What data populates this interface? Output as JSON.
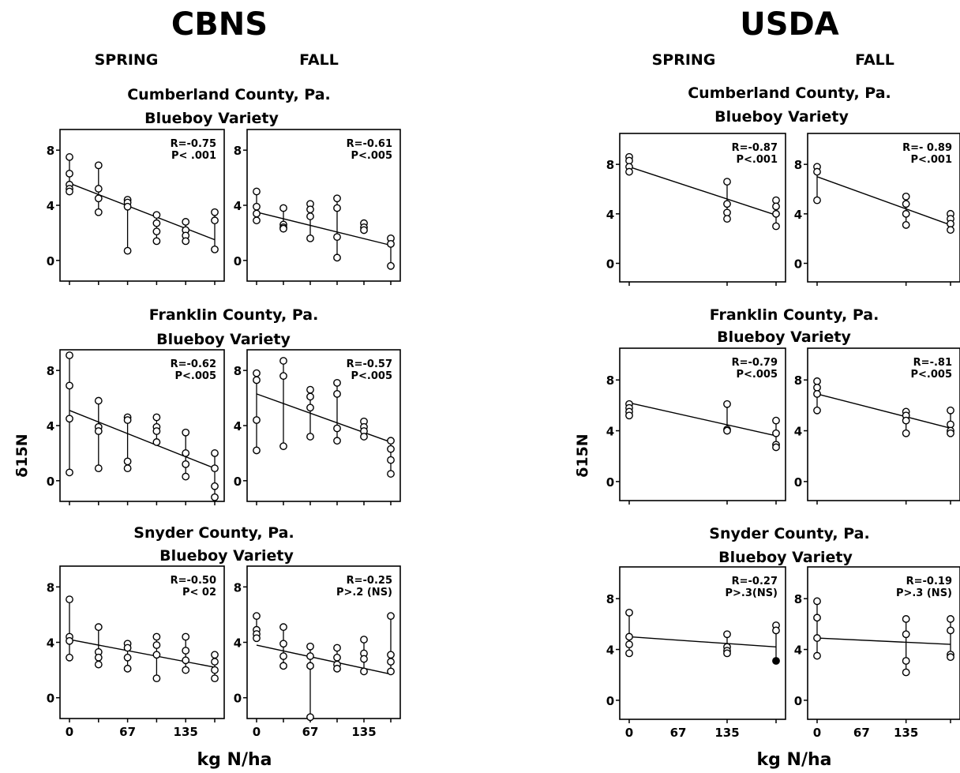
{
  "panels": [
    {
      "title": "CBNS",
      "season_labels": [
        "SPRING",
        "FALL"
      ],
      "ylabel": "δ15N",
      "xlabel": "kg N/ha",
      "groups": [
        {
          "county": "Cumberland County, Pa.",
          "variety": "Blueboy Variety"
        },
        {
          "county": "Franklin County, Pa.",
          "variety": "Blueboy Variety"
        },
        {
          "county": "Snyder County, Pa.",
          "variety": "Blueboy Variety"
        }
      ]
    },
    {
      "title": "USDA",
      "season_labels": [
        "SPRING",
        "FALL"
      ],
      "ylabel": "δ15N",
      "xlabel": "kg N/ha",
      "groups": [
        {
          "county": "Cumberland County, Pa.",
          "variety": "Blueboy Variety"
        },
        {
          "county": "Franklin County, Pa.",
          "variety": "Blueboy Variety"
        },
        {
          "county": "Snyder County, Pa.",
          "variety": "Blueboy Variety"
        }
      ]
    }
  ],
  "chart_data": [
    {
      "type": "scatter",
      "panel": "CBNS",
      "county": "Cumberland County, Pa.",
      "season": "SPRING",
      "r_text": "R=-0.75",
      "p_text": "P< .001",
      "x_ticks": [
        "0",
        "67",
        "135"
      ],
      "x_levels": [
        0,
        28,
        56,
        84,
        112,
        140
      ],
      "y_ticks": [
        "0",
        "4",
        "8"
      ],
      "ylim": [
        -1.5,
        9.5
      ],
      "points": [
        [
          0,
          7.5
        ],
        [
          0,
          6.3
        ],
        [
          0,
          5.5
        ],
        [
          0,
          5.2
        ],
        [
          0,
          5
        ],
        [
          28,
          6.9
        ],
        [
          28,
          5.2
        ],
        [
          28,
          4.5
        ],
        [
          28,
          3.5
        ],
        [
          56,
          4.4
        ],
        [
          56,
          4.2
        ],
        [
          56,
          3.9
        ],
        [
          56,
          0.7
        ],
        [
          84,
          3.3
        ],
        [
          84,
          2.7
        ],
        [
          84,
          2.1
        ],
        [
          84,
          1.4
        ],
        [
          112,
          2.8
        ],
        [
          112,
          2.2
        ],
        [
          112,
          1.8
        ],
        [
          112,
          1.4
        ],
        [
          140,
          3.5
        ],
        [
          140,
          2.9
        ],
        [
          140,
          0.8
        ]
      ],
      "fit": [
        [
          0,
          5.6
        ],
        [
          140,
          1.5
        ]
      ]
    },
    {
      "type": "scatter",
      "panel": "CBNS",
      "county": "Cumberland County, Pa.",
      "season": "FALL",
      "r_text": "R=-0.61",
      "p_text": "P<.005",
      "x_ticks": [
        "0",
        "67",
        "135"
      ],
      "x_levels": [
        0,
        28,
        56,
        84,
        112,
        140
      ],
      "y_ticks": [
        "0",
        "4",
        "8"
      ],
      "ylim": [
        -1.5,
        9.5
      ],
      "points": [
        [
          0,
          5
        ],
        [
          0,
          3.9
        ],
        [
          0,
          3.4
        ],
        [
          0,
          2.9
        ],
        [
          28,
          3.8
        ],
        [
          28,
          2.6
        ],
        [
          28,
          2.4
        ],
        [
          28,
          2.3
        ],
        [
          56,
          4.1
        ],
        [
          56,
          3.7
        ],
        [
          56,
          3.2
        ],
        [
          56,
          1.6
        ],
        [
          84,
          4.5
        ],
        [
          84,
          3.8
        ],
        [
          84,
          1.7
        ],
        [
          84,
          0.2
        ],
        [
          112,
          2.7
        ],
        [
          112,
          2.4
        ],
        [
          112,
          2.2
        ],
        [
          140,
          1.6
        ],
        [
          140,
          1.2
        ],
        [
          140,
          -0.4
        ]
      ],
      "fit": [
        [
          0,
          3.5
        ],
        [
          140,
          1.1
        ]
      ]
    },
    {
      "type": "scatter",
      "panel": "CBNS",
      "county": "Franklin County, Pa.",
      "season": "SPRING",
      "r_text": "R=-0.62",
      "p_text": "P<.005",
      "x_ticks": [
        "0",
        "67",
        "135"
      ],
      "x_levels": [
        0,
        28,
        56,
        84,
        112,
        140
      ],
      "y_ticks": [
        "0",
        "4",
        "8"
      ],
      "ylim": [
        -1.5,
        9.5
      ],
      "points": [
        [
          0,
          9.1
        ],
        [
          0,
          6.9
        ],
        [
          0,
          4.5
        ],
        [
          0,
          0.6
        ],
        [
          28,
          5.8
        ],
        [
          28,
          3.9
        ],
        [
          28,
          3.6
        ],
        [
          28,
          0.9
        ],
        [
          56,
          4.6
        ],
        [
          56,
          4.4
        ],
        [
          56,
          1.4
        ],
        [
          56,
          0.9
        ],
        [
          84,
          4.6
        ],
        [
          84,
          3.9
        ],
        [
          84,
          3.6
        ],
        [
          84,
          2.8
        ],
        [
          112,
          3.5
        ],
        [
          112,
          2
        ],
        [
          112,
          1.2
        ],
        [
          112,
          0.3
        ],
        [
          140,
          2
        ],
        [
          140,
          0.9
        ],
        [
          140,
          -0.4
        ],
        [
          140,
          -1.2
        ]
      ],
      "fit": [
        [
          0,
          5.1
        ],
        [
          140,
          0.9
        ]
      ]
    },
    {
      "type": "scatter",
      "panel": "CBNS",
      "county": "Franklin County, Pa.",
      "season": "FALL",
      "r_text": "R=-0.57",
      "p_text": "P<.005",
      "x_ticks": [
        "0",
        "67",
        "135"
      ],
      "x_levels": [
        0,
        28,
        56,
        84,
        112,
        140
      ],
      "y_ticks": [
        "0",
        "4",
        "8"
      ],
      "ylim": [
        -1.5,
        9.5
      ],
      "points": [
        [
          0,
          7.8
        ],
        [
          0,
          7.3
        ],
        [
          0,
          4.4
        ],
        [
          0,
          2.2
        ],
        [
          28,
          8.7
        ],
        [
          28,
          7.6
        ],
        [
          28,
          2.5
        ],
        [
          56,
          6.6
        ],
        [
          56,
          6.1
        ],
        [
          56,
          5.3
        ],
        [
          56,
          3.2
        ],
        [
          84,
          7.1
        ],
        [
          84,
          6.3
        ],
        [
          84,
          3.8
        ],
        [
          84,
          2.9
        ],
        [
          112,
          4.3
        ],
        [
          112,
          3.9
        ],
        [
          112,
          3.6
        ],
        [
          112,
          3.2
        ],
        [
          140,
          2.9
        ],
        [
          140,
          2.3
        ],
        [
          140,
          1.5
        ],
        [
          140,
          0.5
        ]
      ],
      "fit": [
        [
          0,
          6.3
        ],
        [
          140,
          2.8
        ]
      ]
    },
    {
      "type": "scatter",
      "panel": "CBNS",
      "county": "Snyder County, Pa.",
      "season": "SPRING",
      "r_text": "R=-0.50",
      "p_text": "P< 02",
      "x_ticks": [
        "0",
        "67",
        "135"
      ],
      "x_levels": [
        0,
        28,
        56,
        84,
        112,
        140
      ],
      "y_ticks": [
        "0",
        "4",
        "8"
      ],
      "ylim": [
        -1.5,
        9.5
      ],
      "points": [
        [
          0,
          7.1
        ],
        [
          0,
          4.4
        ],
        [
          0,
          4.1
        ],
        [
          0,
          2.9
        ],
        [
          28,
          5.1
        ],
        [
          28,
          3.3
        ],
        [
          28,
          2.9
        ],
        [
          28,
          2.4
        ],
        [
          56,
          3.9
        ],
        [
          56,
          3.6
        ],
        [
          56,
          2.9
        ],
        [
          56,
          2.1
        ],
        [
          84,
          4.4
        ],
        [
          84,
          3.8
        ],
        [
          84,
          3.1
        ],
        [
          84,
          1.4
        ],
        [
          112,
          4.4
        ],
        [
          112,
          3.4
        ],
        [
          112,
          2.7
        ],
        [
          112,
          2
        ],
        [
          140,
          3.1
        ],
        [
          140,
          2.6
        ],
        [
          140,
          2
        ],
        [
          140,
          1.4
        ]
      ],
      "fit": [
        [
          0,
          4.2
        ],
        [
          140,
          2.2
        ]
      ]
    },
    {
      "type": "scatter",
      "panel": "CBNS",
      "county": "Snyder County, Pa.",
      "season": "FALL",
      "r_text": "R=-0.25",
      "p_text": "P>.2 (NS)",
      "x_ticks": [
        "0",
        "67",
        "135"
      ],
      "x_levels": [
        0,
        28,
        56,
        84,
        112,
        140
      ],
      "y_ticks": [
        "0",
        "4",
        "8"
      ],
      "ylim": [
        -1.5,
        9.5
      ],
      "points": [
        [
          0,
          5.9
        ],
        [
          0,
          4.9
        ],
        [
          0,
          4.6
        ],
        [
          0,
          4.3
        ],
        [
          28,
          5.1
        ],
        [
          28,
          3.9
        ],
        [
          28,
          3
        ],
        [
          28,
          2.3
        ],
        [
          56,
          3.7
        ],
        [
          56,
          3
        ],
        [
          56,
          2.3
        ],
        [
          56,
          -1.4
        ],
        [
          84,
          3.6
        ],
        [
          84,
          2.9
        ],
        [
          84,
          2.4
        ],
        [
          84,
          2.1
        ],
        [
          112,
          4.2
        ],
        [
          112,
          3.2
        ],
        [
          112,
          2.8
        ],
        [
          112,
          1.9
        ],
        [
          140,
          5.9
        ],
        [
          140,
          3.1
        ],
        [
          140,
          2.6
        ],
        [
          140,
          1.9
        ]
      ],
      "fit": [
        [
          0,
          3.8
        ],
        [
          140,
          1.7
        ]
      ]
    },
    {
      "type": "scatter",
      "panel": "USDA",
      "county": "Cumberland County, Pa.",
      "season": "SPRING",
      "r_text": "R=-0.87",
      "p_text": "P<.001",
      "x_ticks": [
        "0",
        "67",
        "135"
      ],
      "x_levels": [
        0,
        100,
        150
      ],
      "y_ticks": [
        "0",
        "4",
        "8"
      ],
      "ylim": [
        -1.5,
        10.5
      ],
      "points": [
        [
          0,
          8.6
        ],
        [
          0,
          8.3
        ],
        [
          0,
          7.8
        ],
        [
          0,
          7.4
        ],
        [
          100,
          6.6
        ],
        [
          100,
          4.8
        ],
        [
          100,
          4.1
        ],
        [
          100,
          3.6
        ],
        [
          150,
          5.1
        ],
        [
          150,
          4.6
        ],
        [
          150,
          4
        ],
        [
          150,
          3
        ]
      ],
      "fit": [
        [
          0,
          7.8
        ],
        [
          150,
          3.9
        ]
      ]
    },
    {
      "type": "scatter",
      "panel": "USDA",
      "county": "Cumberland County, Pa.",
      "season": "FALL",
      "r_text": "R=- 0.89",
      "p_text": "P<.001",
      "x_ticks": [
        "0",
        "67",
        "135"
      ],
      "x_levels": [
        0,
        100,
        150
      ],
      "y_ticks": [
        "0",
        "4",
        "8"
      ],
      "ylim": [
        -1.5,
        10.5
      ],
      "points": [
        [
          0,
          7.8
        ],
        [
          0,
          7.4
        ],
        [
          0,
          5.1
        ],
        [
          100,
          5.4
        ],
        [
          100,
          4.8
        ],
        [
          100,
          4
        ],
        [
          100,
          3.1
        ],
        [
          150,
          4
        ],
        [
          150,
          3.6
        ],
        [
          150,
          3.2
        ],
        [
          150,
          2.7
        ]
      ],
      "fit": [
        [
          0,
          7
        ],
        [
          150,
          3.1
        ]
      ]
    },
    {
      "type": "scatter",
      "panel": "USDA",
      "county": "Franklin County, Pa.",
      "season": "SPRING",
      "r_text": "R=-0.79",
      "p_text": "P<.005",
      "x_ticks": [
        "0",
        "67",
        "135"
      ],
      "x_levels": [
        0,
        100,
        150
      ],
      "y_ticks": [
        "0",
        "4",
        "8"
      ],
      "ylim": [
        -1.5,
        10.5
      ],
      "points": [
        [
          0,
          6.1
        ],
        [
          0,
          5.8
        ],
        [
          0,
          5.5
        ],
        [
          0,
          5.2
        ],
        [
          100,
          6.1
        ],
        [
          100,
          4.1
        ],
        [
          100,
          4
        ],
        [
          150,
          4.8
        ],
        [
          150,
          3.8
        ],
        [
          150,
          2.9
        ],
        [
          150,
          2.7
        ]
      ],
      "fit": [
        [
          0,
          6.2
        ],
        [
          150,
          3.6
        ]
      ]
    },
    {
      "type": "scatter",
      "panel": "USDA",
      "county": "Franklin County, Pa.",
      "season": "FALL",
      "r_text": "R=-.81",
      "p_text": "P<.005",
      "x_ticks": [
        "0",
        "67",
        "135"
      ],
      "x_levels": [
        0,
        100,
        150
      ],
      "y_ticks": [
        "0",
        "4",
        "8"
      ],
      "ylim": [
        -1.5,
        10.5
      ],
      "points": [
        [
          0,
          7.9
        ],
        [
          0,
          7.4
        ],
        [
          0,
          6.9
        ],
        [
          0,
          5.6
        ],
        [
          100,
          5.5
        ],
        [
          100,
          5.2
        ],
        [
          100,
          4.8
        ],
        [
          100,
          3.8
        ],
        [
          150,
          5.6
        ],
        [
          150,
          4.5
        ],
        [
          150,
          4
        ],
        [
          150,
          3.8
        ]
      ],
      "fit": [
        [
          0,
          6.9
        ],
        [
          150,
          4.2
        ]
      ]
    },
    {
      "type": "scatter",
      "panel": "USDA",
      "county": "Snyder County, Pa.",
      "season": "SPRING",
      "r_text": "R=-0.27",
      "p_text": "P>.3(NS)",
      "x_ticks": [
        "0",
        "67",
        "135"
      ],
      "x_levels": [
        0,
        100,
        150
      ],
      "y_ticks": [
        "0",
        "4",
        "8"
      ],
      "ylim": [
        -1.5,
        10.5
      ],
      "points": [
        [
          0,
          6.9
        ],
        [
          0,
          5
        ],
        [
          0,
          4.4
        ],
        [
          0,
          3.7
        ],
        [
          100,
          5.2
        ],
        [
          100,
          4.2
        ],
        [
          100,
          3.9
        ],
        [
          100,
          3.7
        ],
        [
          150,
          5.9
        ],
        [
          150,
          5.5
        ],
        [
          150,
          3.1,
          "filled"
        ]
      ],
      "fit": [
        [
          0,
          5
        ],
        [
          150,
          4.2
        ]
      ]
    },
    {
      "type": "scatter",
      "panel": "USDA",
      "county": "Snyder County, Pa.",
      "season": "FALL",
      "r_text": "R=-0.19",
      "p_text": "P>.3 (NS)",
      "x_ticks": [
        "0",
        "67",
        "135"
      ],
      "x_levels": [
        0,
        100,
        150
      ],
      "y_ticks": [
        "0",
        "4",
        "8"
      ],
      "ylim": [
        -1.5,
        10.5
      ],
      "points": [
        [
          0,
          7.8
        ],
        [
          0,
          6.5
        ],
        [
          0,
          4.9
        ],
        [
          0,
          3.5
        ],
        [
          100,
          6.4
        ],
        [
          100,
          5.2
        ],
        [
          100,
          3.1
        ],
        [
          100,
          2.2
        ],
        [
          150,
          6.4
        ],
        [
          150,
          5.5
        ],
        [
          150,
          3.6
        ],
        [
          150,
          3.4
        ]
      ],
      "fit": [
        [
          0,
          4.9
        ],
        [
          150,
          4.4
        ]
      ]
    }
  ]
}
